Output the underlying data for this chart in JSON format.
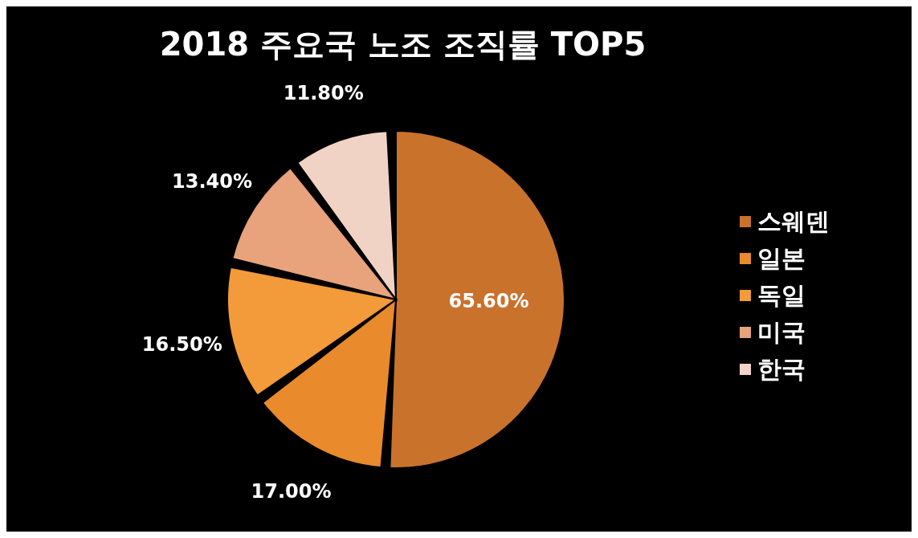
{
  "chart_data": {
    "type": "pie",
    "title": "2018 주요국 노조 조직률 TOP5",
    "categories": [
      "스웨덴",
      "일본",
      "독일",
      "미국",
      "한국"
    ],
    "values": [
      65.6,
      17.0,
      16.5,
      13.4,
      11.8
    ],
    "value_labels": [
      "65.60%",
      "17.00%",
      "16.50%",
      "13.40%",
      "11.80%"
    ],
    "colors": [
      "#c9722c",
      "#e98a2c",
      "#f39a3a",
      "#e8a27c",
      "#f1d3c6"
    ],
    "legend": "right"
  }
}
